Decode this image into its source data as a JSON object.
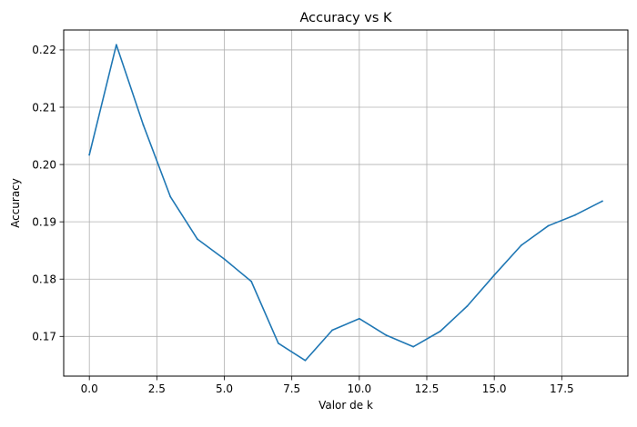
{
  "chart_data": {
    "type": "line",
    "title": "Accuracy vs K",
    "xlabel": "Valor de k",
    "ylabel": "Accuracy",
    "xlim": [
      -0.95,
      19.95
    ],
    "ylim": [
      0.16307,
      0.22348
    ],
    "xticks": [
      0.0,
      2.5,
      5.0,
      7.5,
      10.0,
      12.5,
      15.0,
      17.5
    ],
    "xtick_labels": [
      "0.0",
      "2.5",
      "5.0",
      "7.5",
      "10.0",
      "12.5",
      "15.0",
      "17.5"
    ],
    "yticks": [
      0.17,
      0.18,
      0.19,
      0.2,
      0.21,
      0.22
    ],
    "ytick_labels": [
      "0.17",
      "0.18",
      "0.19",
      "0.20",
      "0.21",
      "0.22"
    ],
    "grid": true,
    "series": [
      {
        "color": "#1f77b4",
        "x": [
          0,
          1,
          2,
          3,
          4,
          5,
          6,
          7,
          8,
          9,
          10,
          11,
          12,
          13,
          14,
          15,
          16,
          17,
          18,
          19
        ],
        "values": [
          0.2017,
          0.2209,
          0.2069,
          0.1944,
          0.187,
          0.1835,
          0.1796,
          0.1688,
          0.1658,
          0.1711,
          0.1731,
          0.1702,
          0.1682,
          0.1709,
          0.1753,
          0.1807,
          0.1859,
          0.1893,
          0.1912,
          0.1936
        ]
      }
    ]
  }
}
